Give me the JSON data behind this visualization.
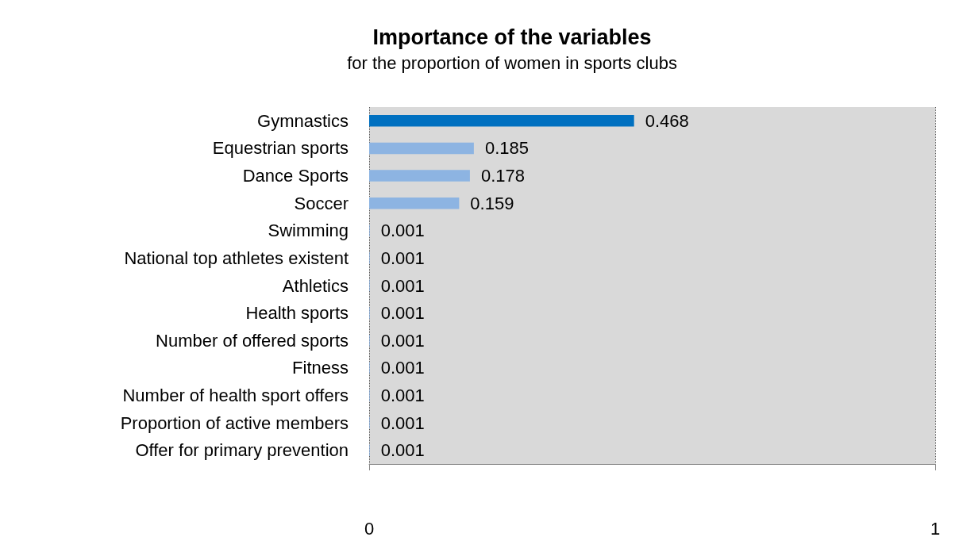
{
  "chart_data": {
    "type": "bar",
    "orientation": "horizontal",
    "title": "Importance of the variables",
    "subtitle": "for the proportion of women in sports clubs",
    "categories": [
      "Gymnastics",
      "Equestrian sports",
      "Dance Sports",
      "Soccer",
      "Swimming",
      "National top athletes existent",
      "Athletics",
      "Health sports",
      "Number of offered sports",
      "Fitness",
      "Number of health sport offers",
      "Proportion of active members",
      "Offer for primary prevention"
    ],
    "values": [
      0.468,
      0.185,
      0.178,
      0.159,
      0.001,
      0.001,
      0.001,
      0.001,
      0.001,
      0.001,
      0.001,
      0.001,
      0.001
    ],
    "colors": [
      "#0070c0",
      "#8db4e2",
      "#8db4e2",
      "#8db4e2",
      "#8db4e2",
      "#8db4e2",
      "#8db4e2",
      "#8db4e2",
      "#8db4e2",
      "#8db4e2",
      "#8db4e2",
      "#8db4e2",
      "#8db4e2"
    ],
    "xlim": [
      0,
      1
    ],
    "xticks": [
      0,
      1
    ],
    "grid": "x",
    "data_labels": true
  }
}
